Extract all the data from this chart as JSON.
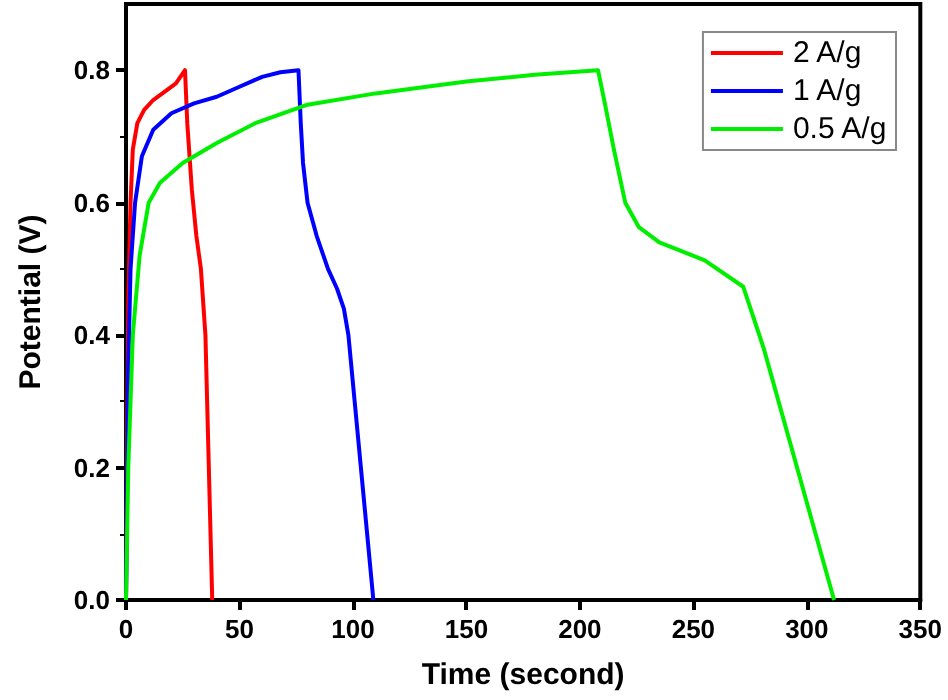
{
  "chart_data": {
    "type": "line",
    "xlabel": "Time (second)",
    "ylabel": "Potential (V)",
    "xlim": [
      0,
      350
    ],
    "xticks": [
      0,
      50,
      100,
      150,
      200,
      250,
      300,
      350
    ],
    "ylim": [
      0,
      0.9
    ],
    "yticks": [
      {
        "value": 0,
        "label": "0.0"
      },
      0.2,
      0.4,
      0.6,
      0.8
    ],
    "legend": "top right",
    "grid": false,
    "marker": "none",
    "line_style": "solid",
    "series": [
      {
        "name": "2 A/g",
        "color": "#ff0000",
        "x": [
          0,
          1,
          2,
          3,
          5,
          8,
          12,
          18,
          22,
          26,
          27,
          29,
          31,
          33,
          34,
          35,
          38
        ],
        "values": [
          0,
          0.45,
          0.6,
          0.68,
          0.72,
          0.74,
          0.755,
          0.77,
          0.78,
          0.8,
          0.72,
          0.62,
          0.55,
          0.5,
          0.45,
          0.4,
          0
        ]
      },
      {
        "name": "1 A/g",
        "color": "#0000ff",
        "x": [
          0,
          1,
          2,
          4,
          7,
          12,
          20,
          30,
          40,
          50,
          60,
          68,
          76,
          77,
          78,
          80,
          84,
          89,
          93,
          96,
          98,
          109
        ],
        "values": [
          0,
          0.35,
          0.5,
          0.6,
          0.67,
          0.71,
          0.735,
          0.75,
          0.76,
          0.775,
          0.79,
          0.797,
          0.8,
          0.72,
          0.66,
          0.6,
          0.55,
          0.5,
          0.47,
          0.44,
          0.4,
          0
        ]
      },
      {
        "name": "0.5 A/g",
        "color": "#00ee00",
        "x": [
          0,
          1,
          3,
          6,
          10,
          15,
          25,
          40,
          57,
          80,
          110,
          150,
          180,
          208,
          211,
          215,
          220,
          226,
          235,
          255,
          272,
          281,
          312
        ],
        "values": [
          0,
          0.2,
          0.4,
          0.52,
          0.6,
          0.63,
          0.66,
          0.69,
          0.72,
          0.748,
          0.765,
          0.783,
          0.793,
          0.8,
          0.75,
          0.68,
          0.6,
          0.563,
          0.54,
          0.513,
          0.473,
          0.38,
          0
        ]
      }
    ]
  }
}
